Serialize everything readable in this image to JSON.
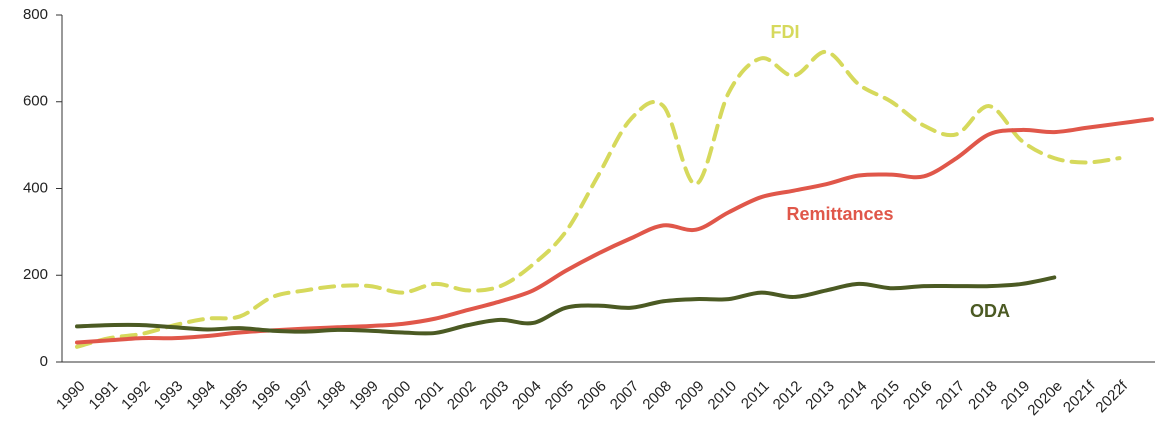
{
  "chart_data": {
    "type": "line",
    "categories": [
      "1990",
      "1991",
      "1992",
      "1993",
      "1994",
      "1995",
      "1996",
      "1997",
      "1998",
      "1999",
      "2000",
      "2001",
      "2002",
      "2003",
      "2004",
      "2005",
      "2006",
      "2007",
      "2008",
      "2009",
      "2010",
      "2011",
      "2012",
      "2013",
      "2014",
      "2015",
      "2016",
      "2017",
      "2018",
      "2019",
      "2020e",
      "2021f",
      "2022f",
      null
    ],
    "series": [
      {
        "name": "FDI",
        "color": "#d6d95c",
        "dashed": true,
        "values": [
          35,
          55,
          65,
          85,
          100,
          105,
          150,
          165,
          175,
          175,
          160,
          180,
          165,
          175,
          225,
          300,
          430,
          560,
          590,
          410,
          620,
          700,
          660,
          715,
          640,
          600,
          545,
          525,
          590,
          510,
          470,
          460,
          470,
          null
        ]
      },
      {
        "name": "Remittances",
        "color": "#e0574a",
        "dashed": false,
        "values": [
          45,
          50,
          55,
          55,
          60,
          68,
          73,
          77,
          80,
          83,
          88,
          100,
          120,
          140,
          165,
          210,
          250,
          285,
          315,
          305,
          345,
          380,
          395,
          410,
          430,
          432,
          428,
          470,
          525,
          535,
          530,
          540,
          550,
          560
        ]
      },
      {
        "name": "ODA",
        "color": "#4b5a23",
        "dashed": false,
        "values": [
          82,
          85,
          85,
          80,
          75,
          78,
          72,
          70,
          74,
          72,
          68,
          67,
          85,
          97,
          90,
          125,
          130,
          125,
          140,
          145,
          145,
          160,
          150,
          165,
          180,
          170,
          175,
          175,
          175,
          180,
          195,
          null,
          null,
          null
        ]
      }
    ],
    "ylim": [
      0,
      800
    ],
    "yticks": [
      0,
      200,
      400,
      600,
      800
    ]
  }
}
